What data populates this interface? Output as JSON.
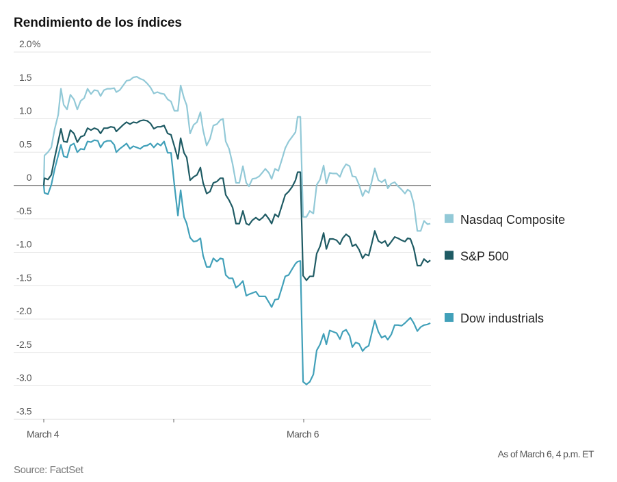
{
  "chart_data": {
    "type": "line",
    "title": "Rendimiento de los índices",
    "xlabel": "",
    "ylabel": "",
    "y_unit": "%",
    "ylim": [
      -3.5,
      2.0
    ],
    "yticks": [
      2.0,
      1.5,
      1.0,
      0.5,
      0,
      -0.5,
      -1.0,
      -1.5,
      -2.0,
      -2.5,
      -3.0,
      -3.5
    ],
    "ytick_labels": [
      "2.0%",
      "1.5",
      "1.0",
      "0.5",
      "0",
      "-0.5",
      "-1.0",
      "-1.5",
      "-2.0",
      "-2.5",
      "-3.0",
      "-3.5"
    ],
    "xlim": [
      0,
      2.974
    ],
    "x_unit": "trading days since March 4 open",
    "xticks": [
      0,
      1,
      2
    ],
    "xtick_labels": [
      "March 4",
      "",
      "March 6"
    ],
    "grid": true,
    "legend_placement": "right",
    "note": "As of March 6, 4 p.m. ET",
    "source": "Source: FactSet",
    "x": [
      0,
      0.005,
      0.032,
      0.058,
      0.084,
      0.111,
      0.132,
      0.153,
      0.179,
      0.205,
      0.232,
      0.258,
      0.284,
      0.311,
      0.337,
      0.363,
      0.389,
      0.416,
      0.437,
      0.463,
      0.489,
      0.516,
      0.542,
      0.558,
      0.584,
      0.611,
      0.637,
      0.663,
      0.689,
      0.716,
      0.742,
      0.768,
      0.795,
      0.821,
      0.847,
      0.874,
      0.9,
      0.926,
      0.953,
      0.979,
      1.005,
      1.032,
      1.053,
      1.079,
      1.1,
      1.126,
      1.153,
      1.179,
      1.205,
      1.226,
      1.253,
      1.279,
      1.305,
      1.332,
      1.358,
      1.379,
      1.4,
      1.426,
      1.453,
      1.479,
      1.505,
      1.532,
      1.558,
      1.579,
      1.605,
      1.632,
      1.658,
      1.684,
      1.705,
      1.732,
      1.753,
      1.779,
      1.805,
      1.832,
      1.858,
      1.884,
      1.911,
      1.937,
      1.953,
      1.974,
      1.995,
      2.021,
      2.047,
      2.074,
      2.1,
      2.126,
      2.153,
      2.174,
      2.2,
      2.226,
      2.253,
      2.279,
      2.3,
      2.326,
      2.353,
      2.374,
      2.4,
      2.426,
      2.453,
      2.474,
      2.5,
      2.521,
      2.547,
      2.574,
      2.6,
      2.626,
      2.647,
      2.674,
      2.7,
      2.726,
      2.753,
      2.779,
      2.8,
      2.821,
      2.847,
      2.874,
      2.9,
      2.926,
      2.953,
      2.974
    ],
    "series": [
      {
        "name": "Nasdaq Composite",
        "color": "#92c9d7",
        "values": [
          0,
          0.45,
          0.5,
          0.57,
          0.85,
          1.06,
          1.45,
          1.21,
          1.14,
          1.36,
          1.29,
          1.14,
          1.27,
          1.31,
          1.45,
          1.37,
          1.43,
          1.42,
          1.34,
          1.43,
          1.45,
          1.45,
          1.46,
          1.4,
          1.43,
          1.5,
          1.57,
          1.58,
          1.62,
          1.63,
          1.6,
          1.58,
          1.53,
          1.47,
          1.38,
          1.4,
          1.38,
          1.37,
          1.29,
          1.26,
          1.12,
          1.12,
          1.5,
          1.31,
          1.2,
          0.78,
          0.91,
          0.95,
          1.1,
          0.83,
          0.6,
          0.7,
          0.9,
          0.92,
          0.98,
          1.0,
          0.66,
          0.55,
          0.32,
          0.04,
          0.04,
          0.29,
          0.04,
          -0.01,
          0.1,
          0.11,
          0.14,
          0.2,
          0.25,
          0.19,
          0.1,
          0.25,
          0.22,
          0.39,
          0.56,
          0.66,
          0.73,
          0.8,
          1.03,
          1.03,
          -0.47,
          -0.47,
          -0.38,
          -0.42,
          0.01,
          0.09,
          0.3,
          0.03,
          0.19,
          0.18,
          0.18,
          0.13,
          0.24,
          0.32,
          0.29,
          0.14,
          0.13,
          0.01,
          -0.16,
          -0.07,
          -0.11,
          0.04,
          0.26,
          0.08,
          0.05,
          0.09,
          -0.04,
          0.03,
          0.05,
          -0.01,
          -0.06,
          -0.12,
          -0.06,
          -0.09,
          -0.27,
          -0.68,
          -0.68,
          -0.53,
          -0.58,
          -0.57
        ]
      },
      {
        "name": "S&P 500",
        "color": "#1f5b64",
        "values": [
          0,
          0.11,
          0.09,
          0.16,
          0.42,
          0.66,
          0.85,
          0.66,
          0.65,
          0.83,
          0.78,
          0.65,
          0.73,
          0.75,
          0.86,
          0.83,
          0.86,
          0.84,
          0.78,
          0.86,
          0.86,
          0.88,
          0.87,
          0.81,
          0.86,
          0.91,
          0.95,
          0.92,
          0.95,
          0.94,
          0.97,
          0.98,
          0.97,
          0.93,
          0.85,
          0.88,
          0.88,
          0.9,
          0.78,
          0.76,
          0.59,
          0.4,
          0.71,
          0.49,
          0.42,
          0.08,
          0.13,
          0.16,
          0.27,
          0.04,
          -0.12,
          -0.09,
          0.04,
          0.06,
          0.11,
          0.11,
          -0.14,
          -0.22,
          -0.33,
          -0.57,
          -0.57,
          -0.38,
          -0.57,
          -0.59,
          -0.52,
          -0.48,
          -0.52,
          -0.48,
          -0.43,
          -0.5,
          -0.57,
          -0.43,
          -0.47,
          -0.3,
          -0.14,
          -0.09,
          -0.02,
          0.08,
          0.2,
          0.2,
          -1.35,
          -1.42,
          -1.36,
          -1.36,
          -1.02,
          -0.91,
          -0.71,
          -0.95,
          -0.8,
          -0.8,
          -0.82,
          -0.88,
          -0.79,
          -0.73,
          -0.77,
          -0.91,
          -0.88,
          -0.96,
          -1.09,
          -1.03,
          -1.05,
          -0.89,
          -0.68,
          -0.83,
          -0.86,
          -0.83,
          -0.91,
          -0.84,
          -0.77,
          -0.79,
          -0.82,
          -0.84,
          -0.79,
          -0.8,
          -0.94,
          -1.2,
          -1.2,
          -1.1,
          -1.15,
          -1.12
        ]
      },
      {
        "name": "Dow industrials",
        "color": "#41a0b9",
        "values": [
          0,
          -0.11,
          -0.13,
          0.01,
          0.25,
          0.45,
          0.61,
          0.44,
          0.42,
          0.6,
          0.63,
          0.5,
          0.55,
          0.54,
          0.66,
          0.65,
          0.68,
          0.67,
          0.57,
          0.65,
          0.67,
          0.67,
          0.61,
          0.5,
          0.55,
          0.59,
          0.63,
          0.55,
          0.59,
          0.57,
          0.55,
          0.59,
          0.6,
          0.63,
          0.57,
          0.63,
          0.6,
          0.66,
          0.49,
          0.49,
          0.01,
          -0.45,
          -0.07,
          -0.47,
          -0.57,
          -0.78,
          -0.84,
          -0.83,
          -0.79,
          -1.05,
          -1.22,
          -1.22,
          -1.09,
          -1.14,
          -1.09,
          -1.1,
          -1.34,
          -1.39,
          -1.39,
          -1.53,
          -1.49,
          -1.43,
          -1.65,
          -1.63,
          -1.61,
          -1.59,
          -1.66,
          -1.66,
          -1.66,
          -1.75,
          -1.82,
          -1.71,
          -1.7,
          -1.53,
          -1.36,
          -1.34,
          -1.25,
          -1.17,
          -1.14,
          -1.13,
          -2.94,
          -2.98,
          -2.94,
          -2.83,
          -2.47,
          -2.38,
          -2.22,
          -2.38,
          -2.17,
          -2.19,
          -2.21,
          -2.3,
          -2.19,
          -2.16,
          -2.25,
          -2.42,
          -2.35,
          -2.37,
          -2.48,
          -2.43,
          -2.4,
          -2.23,
          -2.02,
          -2.19,
          -2.28,
          -2.25,
          -2.31,
          -2.23,
          -2.09,
          -2.09,
          -2.1,
          -2.06,
          -2.02,
          -1.98,
          -2.06,
          -2.18,
          -2.12,
          -2.09,
          -2.08,
          -2.06
        ]
      }
    ],
    "legend_anchor_values": [
      -0.5,
      -1.05,
      -1.98
    ]
  }
}
